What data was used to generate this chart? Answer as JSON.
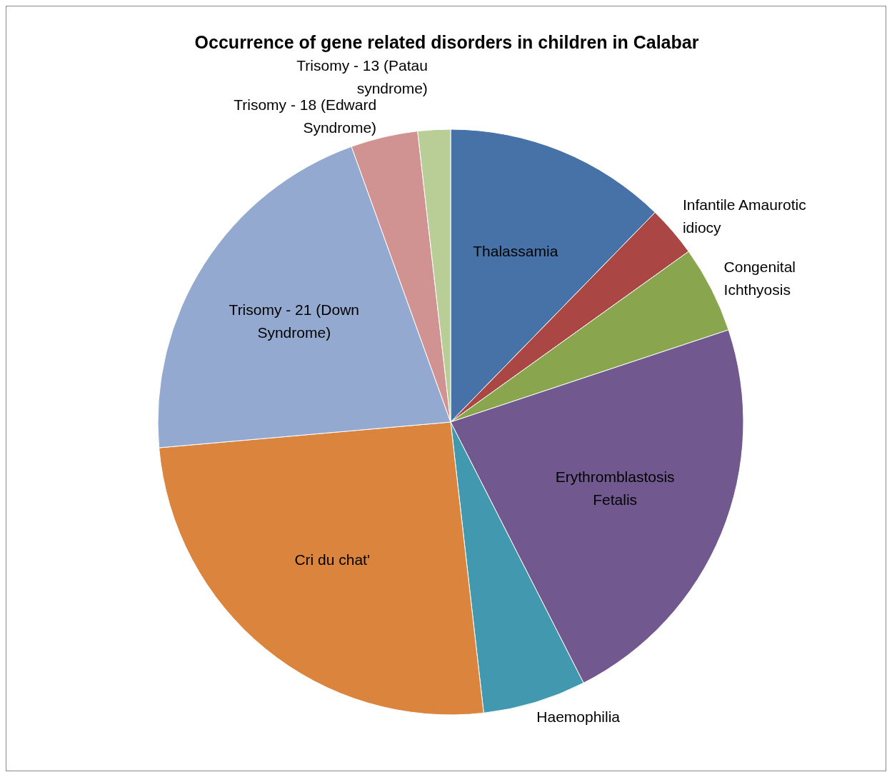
{
  "chart_data": {
    "type": "pie",
    "title": "Occurrence of gene related disorders in children in Calabar",
    "categories": [
      "Thalassamia",
      "Infantile Amaurotic idiocy",
      "Congenital Ichthyosis",
      "Erythromblastosis Fetalis",
      "Haemophilia",
      "Cri du chat'",
      "Trisomy - 21 (Down Syndrome)",
      "Trisomy - 18 (Edward Syndrome)",
      "Trisomy - 13 (Patau syndrome)"
    ],
    "values": [
      12.3,
      2.8,
      4.8,
      22.6,
      5.7,
      25.4,
      20.9,
      3.7,
      1.8
    ],
    "colors": [
      "#4672a8",
      "#aa4644",
      "#89a54e",
      "#71588f",
      "#4298af",
      "#db843d",
      "#93a9cf",
      "#d19392",
      "#b9cd96"
    ]
  }
}
